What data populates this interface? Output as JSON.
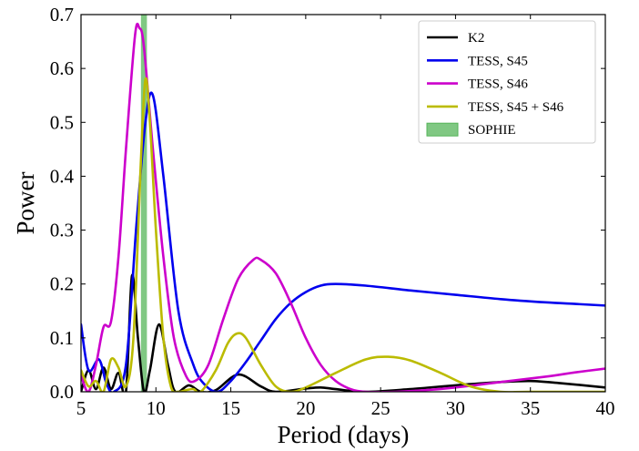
{
  "chart_data": {
    "type": "line",
    "xlabel": "Period (days)",
    "ylabel": "Power",
    "xlim": [
      5,
      40
    ],
    "ylim": [
      0,
      0.7
    ],
    "xticks": [
      5,
      10,
      15,
      20,
      25,
      30,
      35,
      40
    ],
    "yticks": [
      0.0,
      0.1,
      0.2,
      0.3,
      0.4,
      0.5,
      0.6,
      0.7
    ],
    "xtick_labels": [
      "5",
      "10",
      "15",
      "20",
      "25",
      "30",
      "35",
      "40"
    ],
    "ytick_labels": [
      "0.0",
      "0.1",
      "0.2",
      "0.3",
      "0.4",
      "0.5",
      "0.6",
      "0.7"
    ],
    "grid": false,
    "legend_position": "top-right",
    "series": [
      {
        "name": "K2",
        "color": "#000000",
        "points": [
          [
            5,
            0.0
          ],
          [
            5.5,
            0.04
          ],
          [
            6,
            0.005
          ],
          [
            6.5,
            0.045
          ],
          [
            7,
            0.005
          ],
          [
            7.5,
            0.035
          ],
          [
            8,
            0.0
          ],
          [
            8.4,
            0.215
          ],
          [
            8.8,
            0.1
          ],
          [
            9.2,
            0.0
          ],
          [
            9.6,
            0.04
          ],
          [
            10.2,
            0.125
          ],
          [
            10.8,
            0.05
          ],
          [
            11.3,
            0.0
          ],
          [
            12.2,
            0.012
          ],
          [
            13,
            0.0
          ],
          [
            14,
            0.003
          ],
          [
            15.5,
            0.032
          ],
          [
            17,
            0.01
          ],
          [
            18,
            0.0
          ],
          [
            20,
            0.006
          ],
          [
            21,
            0.008
          ],
          [
            22,
            0.005
          ],
          [
            24,
            0.0
          ],
          [
            27,
            0.005
          ],
          [
            30,
            0.012
          ],
          [
            33,
            0.018
          ],
          [
            35,
            0.02
          ],
          [
            37,
            0.016
          ],
          [
            40,
            0.008
          ]
        ]
      },
      {
        "name": "TESS, S45",
        "color": "#0000ee",
        "points": [
          [
            5,
            0.125
          ],
          [
            5.5,
            0.04
          ],
          [
            6.2,
            0.06
          ],
          [
            6.7,
            0.015
          ],
          [
            7.2,
            0.0
          ],
          [
            8,
            0.05
          ],
          [
            8.7,
            0.31
          ],
          [
            9.3,
            0.5
          ],
          [
            9.8,
            0.55
          ],
          [
            10.5,
            0.4
          ],
          [
            11.5,
            0.15
          ],
          [
            12.5,
            0.05
          ],
          [
            13.2,
            0.015
          ],
          [
            14.1,
            0.0
          ],
          [
            15,
            0.02
          ],
          [
            16,
            0.055
          ],
          [
            17,
            0.095
          ],
          [
            18,
            0.135
          ],
          [
            19,
            0.165
          ],
          [
            20,
            0.185
          ],
          [
            21,
            0.197
          ],
          [
            22,
            0.2
          ],
          [
            24,
            0.197
          ],
          [
            27,
            0.188
          ],
          [
            30,
            0.18
          ],
          [
            33,
            0.172
          ],
          [
            36,
            0.166
          ],
          [
            38,
            0.163
          ],
          [
            40,
            0.16
          ]
        ]
      },
      {
        "name": "TESS, S46",
        "color": "#cc00cc",
        "points": [
          [
            5,
            0.03
          ],
          [
            5.5,
            0.0
          ],
          [
            6,
            0.05
          ],
          [
            6.5,
            0.12
          ],
          [
            7,
            0.13
          ],
          [
            7.5,
            0.25
          ],
          [
            8,
            0.45
          ],
          [
            8.6,
            0.66
          ],
          [
            8.9,
            0.675
          ],
          [
            9.2,
            0.64
          ],
          [
            9.8,
            0.45
          ],
          [
            10.5,
            0.25
          ],
          [
            11.2,
            0.1
          ],
          [
            12,
            0.03
          ],
          [
            12.6,
            0.02
          ],
          [
            13.5,
            0.05
          ],
          [
            14.5,
            0.135
          ],
          [
            15.5,
            0.21
          ],
          [
            16.5,
            0.245
          ],
          [
            17,
            0.245
          ],
          [
            18,
            0.22
          ],
          [
            19,
            0.165
          ],
          [
            20,
            0.1
          ],
          [
            21,
            0.05
          ],
          [
            22,
            0.02
          ],
          [
            23,
            0.005
          ],
          [
            24,
            0.0
          ],
          [
            26,
            0.0
          ],
          [
            28,
            0.003
          ],
          [
            30,
            0.008
          ],
          [
            33,
            0.018
          ],
          [
            36,
            0.028
          ],
          [
            38,
            0.036
          ],
          [
            40,
            0.043
          ]
        ]
      },
      {
        "name": "TESS, S45 + S46",
        "color": "#bbbb00",
        "points": [
          [
            5,
            0.04
          ],
          [
            5.5,
            0.01
          ],
          [
            6,
            0.02
          ],
          [
            6.5,
            0.0
          ],
          [
            7,
            0.06
          ],
          [
            7.5,
            0.045
          ],
          [
            8,
            0.01
          ],
          [
            8.5,
            0.1
          ],
          [
            9,
            0.43
          ],
          [
            9.3,
            0.58
          ],
          [
            9.6,
            0.5
          ],
          [
            10,
            0.3
          ],
          [
            10.5,
            0.1
          ],
          [
            11,
            0.01
          ],
          [
            11.5,
            0.0
          ],
          [
            12,
            0.003
          ],
          [
            12.5,
            0.005
          ],
          [
            13,
            0.0
          ],
          [
            14,
            0.04
          ],
          [
            14.8,
            0.09
          ],
          [
            15.4,
            0.108
          ],
          [
            16,
            0.1
          ],
          [
            17,
            0.05
          ],
          [
            18,
            0.01
          ],
          [
            19,
            0.0
          ],
          [
            20,
            0.008
          ],
          [
            22,
            0.035
          ],
          [
            24,
            0.06
          ],
          [
            25.5,
            0.065
          ],
          [
            27,
            0.058
          ],
          [
            29,
            0.035
          ],
          [
            31,
            0.01
          ],
          [
            33,
            0.0
          ],
          [
            35,
            0.0
          ],
          [
            40,
            0.0
          ]
        ]
      }
    ],
    "band": {
      "name": "SOPHIE",
      "color": "#55b55a",
      "x_range": [
        9.0,
        9.4
      ]
    }
  }
}
